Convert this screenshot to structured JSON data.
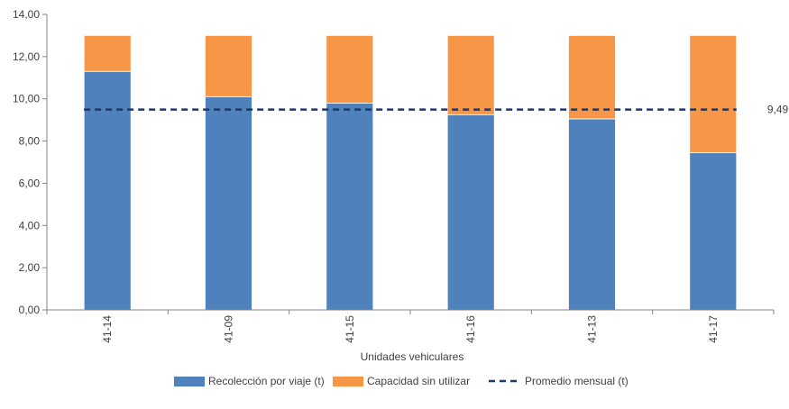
{
  "chart_data": {
    "type": "bar",
    "stacked": true,
    "categories": [
      "41-14",
      "41-09",
      "41-15",
      "41-16",
      "41-13",
      "41-17"
    ],
    "series": [
      {
        "name": "Recolección por viaje (t)",
        "values": [
          11.3,
          10.1,
          9.8,
          9.25,
          9.05,
          7.45
        ],
        "color": "#4F81BD"
      },
      {
        "name": "Capacidad sin utilizar",
        "values": [
          1.7,
          2.9,
          3.2,
          3.75,
          3.95,
          5.55
        ],
        "color": "#F79646"
      }
    ],
    "average_line": {
      "name": "Promedio mensual (t)",
      "value": 9.49,
      "label": "9,49",
      "color": "#1F3864",
      "style": "dashed"
    },
    "xlabel": "Unidades vehiculares",
    "ylabel": "",
    "ylim": [
      0,
      14
    ],
    "yticks": [
      "0,00",
      "2,00",
      "4,00",
      "6,00",
      "8,00",
      "10,00",
      "12,00",
      "14,00"
    ],
    "grid": false,
    "legend_position": "bottom"
  }
}
